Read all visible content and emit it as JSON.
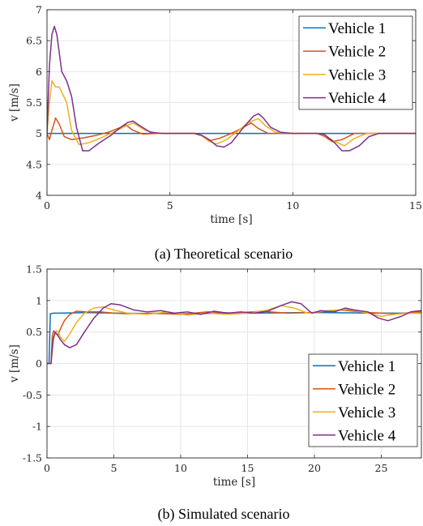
{
  "chart_data": [
    {
      "type": "line",
      "caption": "(a) Theoretical scenario",
      "xlabel": "time [s]",
      "ylabel": "v [m/s]",
      "xlim": [
        0,
        15
      ],
      "ylim": [
        4,
        7
      ],
      "xticks": [
        "0",
        "5",
        "10",
        "15"
      ],
      "yticks": [
        "4",
        "4.5",
        "5",
        "5.5",
        "6",
        "6.5",
        "7"
      ],
      "grid": true,
      "legend_position": "top-right",
      "series": [
        {
          "name": "Vehicle 1",
          "color": "#0072BD",
          "x": [
            0,
            15
          ],
          "y": [
            5,
            5
          ]
        },
        {
          "name": "Vehicle 2",
          "color": "#D95319",
          "x": [
            0,
            0.1,
            0.2,
            0.35,
            0.5,
            0.7,
            1.0,
            1.5,
            2.0,
            2.5,
            3.0,
            3.2,
            3.5,
            3.9,
            4.5,
            5.5,
            6.0,
            6.3,
            6.6,
            7.0,
            7.5,
            8.0,
            8.3,
            8.6,
            9.0,
            9.5,
            10.5,
            11.0,
            11.3,
            11.6,
            12.0,
            12.5,
            13.0,
            15.0
          ],
          "y": [
            5.0,
            4.9,
            5.05,
            5.25,
            5.15,
            4.95,
            4.9,
            4.93,
            4.97,
            5.02,
            5.1,
            5.14,
            5.05,
            4.99,
            5.0,
            5.0,
            5.0,
            4.96,
            4.88,
            4.92,
            5.0,
            5.1,
            5.17,
            5.08,
            5.0,
            5.0,
            5.0,
            5.0,
            4.95,
            4.87,
            4.9,
            5.0,
            5.0,
            5.0
          ]
        },
        {
          "name": "Vehicle 3",
          "color": "#EDB120",
          "x": [
            0,
            0.1,
            0.2,
            0.35,
            0.5,
            0.8,
            1.0,
            1.3,
            1.7,
            2.2,
            2.7,
            3.2,
            3.5,
            4.0,
            4.5,
            5.5,
            6.0,
            6.3,
            6.6,
            6.9,
            7.3,
            7.8,
            8.2,
            8.6,
            8.9,
            9.3,
            10.0,
            11.0,
            11.3,
            11.7,
            12.1,
            12.5,
            13.0,
            15.0
          ],
          "y": [
            5.0,
            5.5,
            5.85,
            5.75,
            5.75,
            5.5,
            5.05,
            4.82,
            4.85,
            4.93,
            5.02,
            5.12,
            5.17,
            5.05,
            5.0,
            5.0,
            5.0,
            4.96,
            4.87,
            4.83,
            4.9,
            5.05,
            5.18,
            5.24,
            5.12,
            5.02,
            5.0,
            5.0,
            4.97,
            4.87,
            4.8,
            4.92,
            5.0,
            5.0
          ]
        },
        {
          "name": "Vehicle 4",
          "color": "#7E2F8E",
          "x": [
            0,
            0.1,
            0.2,
            0.3,
            0.4,
            0.5,
            0.6,
            0.8,
            1.0,
            1.2,
            1.45,
            1.7,
            2.1,
            2.6,
            3.0,
            3.3,
            3.5,
            3.8,
            4.2,
            4.7,
            5.5,
            6.0,
            6.3,
            6.6,
            6.9,
            7.2,
            7.5,
            8.0,
            8.4,
            8.6,
            8.8,
            9.1,
            9.5,
            10.0,
            11.0,
            11.3,
            11.7,
            12.0,
            12.3,
            12.7,
            13.1,
            13.5,
            15.0
          ],
          "y": [
            5.0,
            6.1,
            6.6,
            6.73,
            6.6,
            6.3,
            6.0,
            5.85,
            5.6,
            5.1,
            4.72,
            4.72,
            4.84,
            4.97,
            5.1,
            5.18,
            5.2,
            5.12,
            5.02,
            5.0,
            5.0,
            5.0,
            4.97,
            4.9,
            4.8,
            4.78,
            4.85,
            5.1,
            5.28,
            5.32,
            5.25,
            5.1,
            5.02,
            5.0,
            5.0,
            4.98,
            4.85,
            4.72,
            4.72,
            4.8,
            4.95,
            5.0,
            5.0
          ]
        }
      ]
    },
    {
      "type": "line",
      "caption": "(b) Simulated scenario",
      "xlabel": "time [s]",
      "ylabel": "v [m/s]",
      "xlim": [
        0,
        28
      ],
      "ylim": [
        -1.5,
        1.5
      ],
      "xticks": [
        "0",
        "5",
        "10",
        "15",
        "20",
        "25"
      ],
      "yticks": [
        "-1.5",
        "-1",
        "-0.5",
        "0",
        "0.5",
        "1",
        "1.5"
      ],
      "grid": true,
      "legend_position": "bottom-right",
      "series": [
        {
          "name": "Vehicle 1",
          "color": "#0072BD",
          "x": [
            0,
            0.15,
            0.25,
            0.5,
            1.0,
            3.0,
            5.0,
            10.0,
            15.0,
            20.0,
            25.0,
            28.0
          ],
          "y": [
            0.0,
            0.0,
            0.79,
            0.8,
            0.8,
            0.81,
            0.8,
            0.79,
            0.8,
            0.81,
            0.8,
            0.8
          ]
        },
        {
          "name": "Vehicle 2",
          "color": "#D95319",
          "x": [
            0,
            0.3,
            0.4,
            0.5,
            0.65,
            0.8,
            1.0,
            1.3,
            1.7,
            2.2,
            3.0,
            4.0,
            5.0,
            6.0,
            8.0,
            10.0,
            12.0,
            14.0,
            16.0,
            18.0,
            20.0,
            22.0,
            24.0,
            26.0,
            28.0
          ],
          "y": [
            0.0,
            0.0,
            0.45,
            0.52,
            0.48,
            0.45,
            0.55,
            0.68,
            0.78,
            0.83,
            0.82,
            0.82,
            0.8,
            0.79,
            0.8,
            0.78,
            0.82,
            0.8,
            0.83,
            0.8,
            0.81,
            0.85,
            0.81,
            0.79,
            0.82
          ]
        },
        {
          "name": "Vehicle 3",
          "color": "#EDB120",
          "x": [
            0,
            0.3,
            0.5,
            0.7,
            0.85,
            1.0,
            1.3,
            1.7,
            2.2,
            2.8,
            3.5,
            4.2,
            5.0,
            6.0,
            7.5,
            9.0,
            10.5,
            12.0,
            13.5,
            15.0,
            16.5,
            17.5,
            18.5,
            19.5,
            21.0,
            22.5,
            24.0,
            25.0,
            26.0,
            27.0,
            28.0
          ],
          "y": [
            0.0,
            0.0,
            0.4,
            0.52,
            0.5,
            0.42,
            0.35,
            0.47,
            0.65,
            0.8,
            0.88,
            0.9,
            0.85,
            0.8,
            0.78,
            0.82,
            0.77,
            0.8,
            0.78,
            0.8,
            0.85,
            0.92,
            0.88,
            0.8,
            0.84,
            0.86,
            0.8,
            0.75,
            0.78,
            0.8,
            0.8
          ]
        },
        {
          "name": "Vehicle 4",
          "color": "#7E2F8E",
          "x": [
            0,
            0.3,
            0.45,
            0.6,
            0.8,
            1.0,
            1.3,
            1.7,
            2.2,
            2.8,
            3.5,
            4.2,
            4.8,
            5.5,
            6.5,
            7.5,
            8.5,
            9.5,
            10.5,
            11.5,
            12.5,
            13.5,
            14.5,
            15.5,
            16.5,
            17.5,
            18.3,
            19.0,
            19.8,
            20.5,
            21.5,
            22.3,
            23.0,
            24.0,
            24.8,
            25.5,
            26.5,
            27.2,
            28.0
          ],
          "y": [
            0.0,
            0.0,
            0.38,
            0.5,
            0.45,
            0.38,
            0.3,
            0.25,
            0.3,
            0.5,
            0.72,
            0.88,
            0.95,
            0.93,
            0.85,
            0.82,
            0.84,
            0.8,
            0.82,
            0.78,
            0.83,
            0.8,
            0.82,
            0.8,
            0.83,
            0.92,
            0.98,
            0.95,
            0.8,
            0.84,
            0.82,
            0.88,
            0.85,
            0.82,
            0.72,
            0.68,
            0.75,
            0.82,
            0.84
          ]
        }
      ]
    }
  ]
}
